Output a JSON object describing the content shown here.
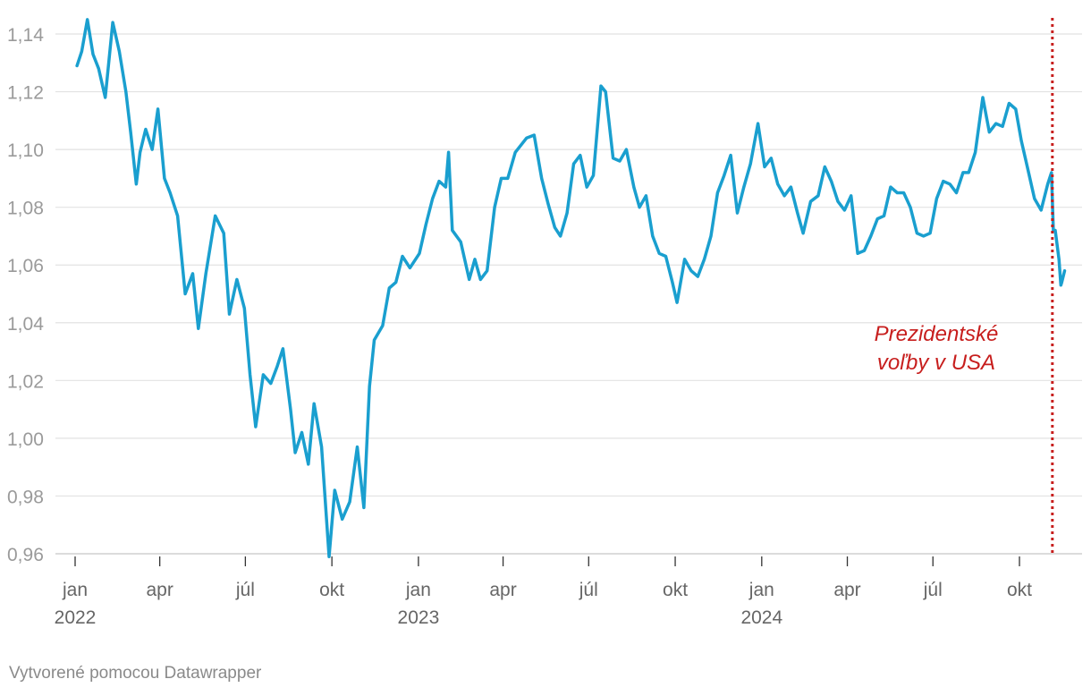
{
  "chart_data": {
    "type": "line",
    "title": "",
    "xlabel": "",
    "ylabel": "",
    "ylim": [
      0.96,
      1.15
    ],
    "y_ticks": [
      "1,14",
      "1,12",
      "1,10",
      "1,08",
      "1,06",
      "1,04",
      "1,02",
      "1,00",
      "0,98",
      "0,96"
    ],
    "y_tick_values": [
      1.14,
      1.12,
      1.1,
      1.08,
      1.06,
      1.04,
      1.02,
      1.0,
      0.98,
      0.96
    ],
    "x_ticks": [
      {
        "label": "jan",
        "year": "2022",
        "date": "2022-01-01"
      },
      {
        "label": "apr",
        "year": "",
        "date": "2022-04-01"
      },
      {
        "label": "júl",
        "year": "",
        "date": "2022-07-01"
      },
      {
        "label": "okt",
        "year": "",
        "date": "2022-10-01"
      },
      {
        "label": "jan",
        "year": "2023",
        "date": "2023-01-01"
      },
      {
        "label": "apr",
        "year": "",
        "date": "2023-04-01"
      },
      {
        "label": "júl",
        "year": "",
        "date": "2023-07-01"
      },
      {
        "label": "okt",
        "year": "",
        "date": "2023-10-01"
      },
      {
        "label": "jan",
        "year": "2024",
        "date": "2024-01-01"
      },
      {
        "label": "apr",
        "year": "",
        "date": "2024-04-01"
      },
      {
        "label": "júl",
        "year": "",
        "date": "2024-07-01"
      },
      {
        "label": "okt",
        "year": "",
        "date": "2024-10-01"
      }
    ],
    "xlim": [
      "2022-01-01",
      "2024-11-15"
    ],
    "grid": true,
    "series": [
      {
        "color": "#1a9fcf",
        "points": [
          [
            "2022-01-03",
            1.129
          ],
          [
            "2022-01-08",
            1.134
          ],
          [
            "2022-01-14",
            1.145
          ],
          [
            "2022-01-20",
            1.133
          ],
          [
            "2022-01-26",
            1.128
          ],
          [
            "2022-02-02",
            1.118
          ],
          [
            "2022-02-10",
            1.144
          ],
          [
            "2022-02-17",
            1.134
          ],
          [
            "2022-02-24",
            1.12
          ],
          [
            "2022-03-01",
            1.106
          ],
          [
            "2022-03-07",
            1.088
          ],
          [
            "2022-03-11",
            1.099
          ],
          [
            "2022-03-17",
            1.107
          ],
          [
            "2022-03-24",
            1.1
          ],
          [
            "2022-03-30",
            1.114
          ],
          [
            "2022-04-06",
            1.09
          ],
          [
            "2022-04-12",
            1.085
          ],
          [
            "2022-04-20",
            1.077
          ],
          [
            "2022-04-28",
            1.05
          ],
          [
            "2022-05-06",
            1.057
          ],
          [
            "2022-05-12",
            1.038
          ],
          [
            "2022-05-20",
            1.057
          ],
          [
            "2022-05-30",
            1.077
          ],
          [
            "2022-06-08",
            1.071
          ],
          [
            "2022-06-14",
            1.043
          ],
          [
            "2022-06-22",
            1.055
          ],
          [
            "2022-06-30",
            1.045
          ],
          [
            "2022-07-06",
            1.022
          ],
          [
            "2022-07-12",
            1.004
          ],
          [
            "2022-07-20",
            1.022
          ],
          [
            "2022-07-28",
            1.019
          ],
          [
            "2022-08-04",
            1.025
          ],
          [
            "2022-08-10",
            1.031
          ],
          [
            "2022-08-18",
            1.01
          ],
          [
            "2022-08-23",
            0.995
          ],
          [
            "2022-08-30",
            1.002
          ],
          [
            "2022-09-06",
            0.991
          ],
          [
            "2022-09-12",
            1.012
          ],
          [
            "2022-09-20",
            0.997
          ],
          [
            "2022-09-28",
            0.959
          ],
          [
            "2022-10-04",
            0.982
          ],
          [
            "2022-10-12",
            0.972
          ],
          [
            "2022-10-20",
            0.978
          ],
          [
            "2022-10-28",
            0.997
          ],
          [
            "2022-11-04",
            0.976
          ],
          [
            "2022-11-10",
            1.018
          ],
          [
            "2022-11-15",
            1.034
          ],
          [
            "2022-11-24",
            1.039
          ],
          [
            "2022-12-01",
            1.052
          ],
          [
            "2022-12-08",
            1.054
          ],
          [
            "2022-12-15",
            1.063
          ],
          [
            "2022-12-23",
            1.059
          ],
          [
            "2023-01-02",
            1.064
          ],
          [
            "2023-01-09",
            1.074
          ],
          [
            "2023-01-16",
            1.083
          ],
          [
            "2023-01-23",
            1.089
          ],
          [
            "2023-01-30",
            1.087
          ],
          [
            "2023-02-02",
            1.099
          ],
          [
            "2023-02-06",
            1.072
          ],
          [
            "2023-02-15",
            1.068
          ],
          [
            "2023-02-24",
            1.055
          ],
          [
            "2023-03-02",
            1.062
          ],
          [
            "2023-03-08",
            1.055
          ],
          [
            "2023-03-15",
            1.058
          ],
          [
            "2023-03-23",
            1.08
          ],
          [
            "2023-03-30",
            1.09
          ],
          [
            "2023-04-06",
            1.09
          ],
          [
            "2023-04-14",
            1.099
          ],
          [
            "2023-04-26",
            1.104
          ],
          [
            "2023-05-04",
            1.105
          ],
          [
            "2023-05-12",
            1.09
          ],
          [
            "2023-05-19",
            1.081
          ],
          [
            "2023-05-26",
            1.073
          ],
          [
            "2023-06-01",
            1.07
          ],
          [
            "2023-06-08",
            1.078
          ],
          [
            "2023-06-15",
            1.095
          ],
          [
            "2023-06-22",
            1.098
          ],
          [
            "2023-06-29",
            1.087
          ],
          [
            "2023-07-06",
            1.091
          ],
          [
            "2023-07-14",
            1.122
          ],
          [
            "2023-07-19",
            1.12
          ],
          [
            "2023-07-27",
            1.097
          ],
          [
            "2023-08-03",
            1.096
          ],
          [
            "2023-08-10",
            1.1
          ],
          [
            "2023-08-18",
            1.087
          ],
          [
            "2023-08-24",
            1.08
          ],
          [
            "2023-08-31",
            1.084
          ],
          [
            "2023-09-07",
            1.07
          ],
          [
            "2023-09-14",
            1.064
          ],
          [
            "2023-09-21",
            1.063
          ],
          [
            "2023-09-28",
            1.054
          ],
          [
            "2023-10-03",
            1.047
          ],
          [
            "2023-10-11",
            1.062
          ],
          [
            "2023-10-18",
            1.058
          ],
          [
            "2023-10-25",
            1.056
          ],
          [
            "2023-11-01",
            1.062
          ],
          [
            "2023-11-08",
            1.07
          ],
          [
            "2023-11-15",
            1.085
          ],
          [
            "2023-11-22",
            1.091
          ],
          [
            "2023-11-29",
            1.098
          ],
          [
            "2023-12-06",
            1.078
          ],
          [
            "2023-12-13",
            1.087
          ],
          [
            "2023-12-20",
            1.095
          ],
          [
            "2023-12-28",
            1.109
          ],
          [
            "2024-01-04",
            1.094
          ],
          [
            "2024-01-11",
            1.097
          ],
          [
            "2024-01-18",
            1.088
          ],
          [
            "2024-01-25",
            1.084
          ],
          [
            "2024-02-01",
            1.087
          ],
          [
            "2024-02-08",
            1.078
          ],
          [
            "2024-02-14",
            1.071
          ],
          [
            "2024-02-22",
            1.082
          ],
          [
            "2024-03-01",
            1.084
          ],
          [
            "2024-03-08",
            1.094
          ],
          [
            "2024-03-15",
            1.089
          ],
          [
            "2024-03-22",
            1.082
          ],
          [
            "2024-03-29",
            1.079
          ],
          [
            "2024-04-05",
            1.084
          ],
          [
            "2024-04-12",
            1.064
          ],
          [
            "2024-04-19",
            1.065
          ],
          [
            "2024-04-26",
            1.07
          ],
          [
            "2024-05-03",
            1.076
          ],
          [
            "2024-05-10",
            1.077
          ],
          [
            "2024-05-17",
            1.087
          ],
          [
            "2024-05-24",
            1.085
          ],
          [
            "2024-05-31",
            1.085
          ],
          [
            "2024-06-07",
            1.08
          ],
          [
            "2024-06-14",
            1.071
          ],
          [
            "2024-06-21",
            1.07
          ],
          [
            "2024-06-28",
            1.071
          ],
          [
            "2024-07-05",
            1.083
          ],
          [
            "2024-07-12",
            1.089
          ],
          [
            "2024-07-19",
            1.088
          ],
          [
            "2024-07-26",
            1.085
          ],
          [
            "2024-08-02",
            1.092
          ],
          [
            "2024-08-08",
            1.092
          ],
          [
            "2024-08-15",
            1.099
          ],
          [
            "2024-08-23",
            1.118
          ],
          [
            "2024-08-30",
            1.106
          ],
          [
            "2024-09-06",
            1.109
          ],
          [
            "2024-09-13",
            1.108
          ],
          [
            "2024-09-20",
            1.116
          ],
          [
            "2024-09-27",
            1.114
          ],
          [
            "2024-10-03",
            1.103
          ],
          [
            "2024-10-10",
            1.093
          ],
          [
            "2024-10-17",
            1.083
          ],
          [
            "2024-10-24",
            1.079
          ],
          [
            "2024-10-31",
            1.088
          ],
          [
            "2024-11-04",
            1.092
          ],
          [
            "2024-11-06",
            1.072
          ],
          [
            "2024-11-08",
            1.072
          ],
          [
            "2024-11-12",
            1.062
          ],
          [
            "2024-11-14",
            1.053
          ],
          [
            "2024-11-15",
            1.054
          ],
          [
            "2024-11-18",
            1.058
          ]
        ]
      }
    ],
    "annotation": {
      "date": "2024-11-05",
      "lines": [
        "Prezidentské",
        "voľby v USA"
      ],
      "color": "#c71e1d",
      "line_style": "dotted"
    }
  },
  "credit": "Vytvorené pomocou Datawrapper"
}
